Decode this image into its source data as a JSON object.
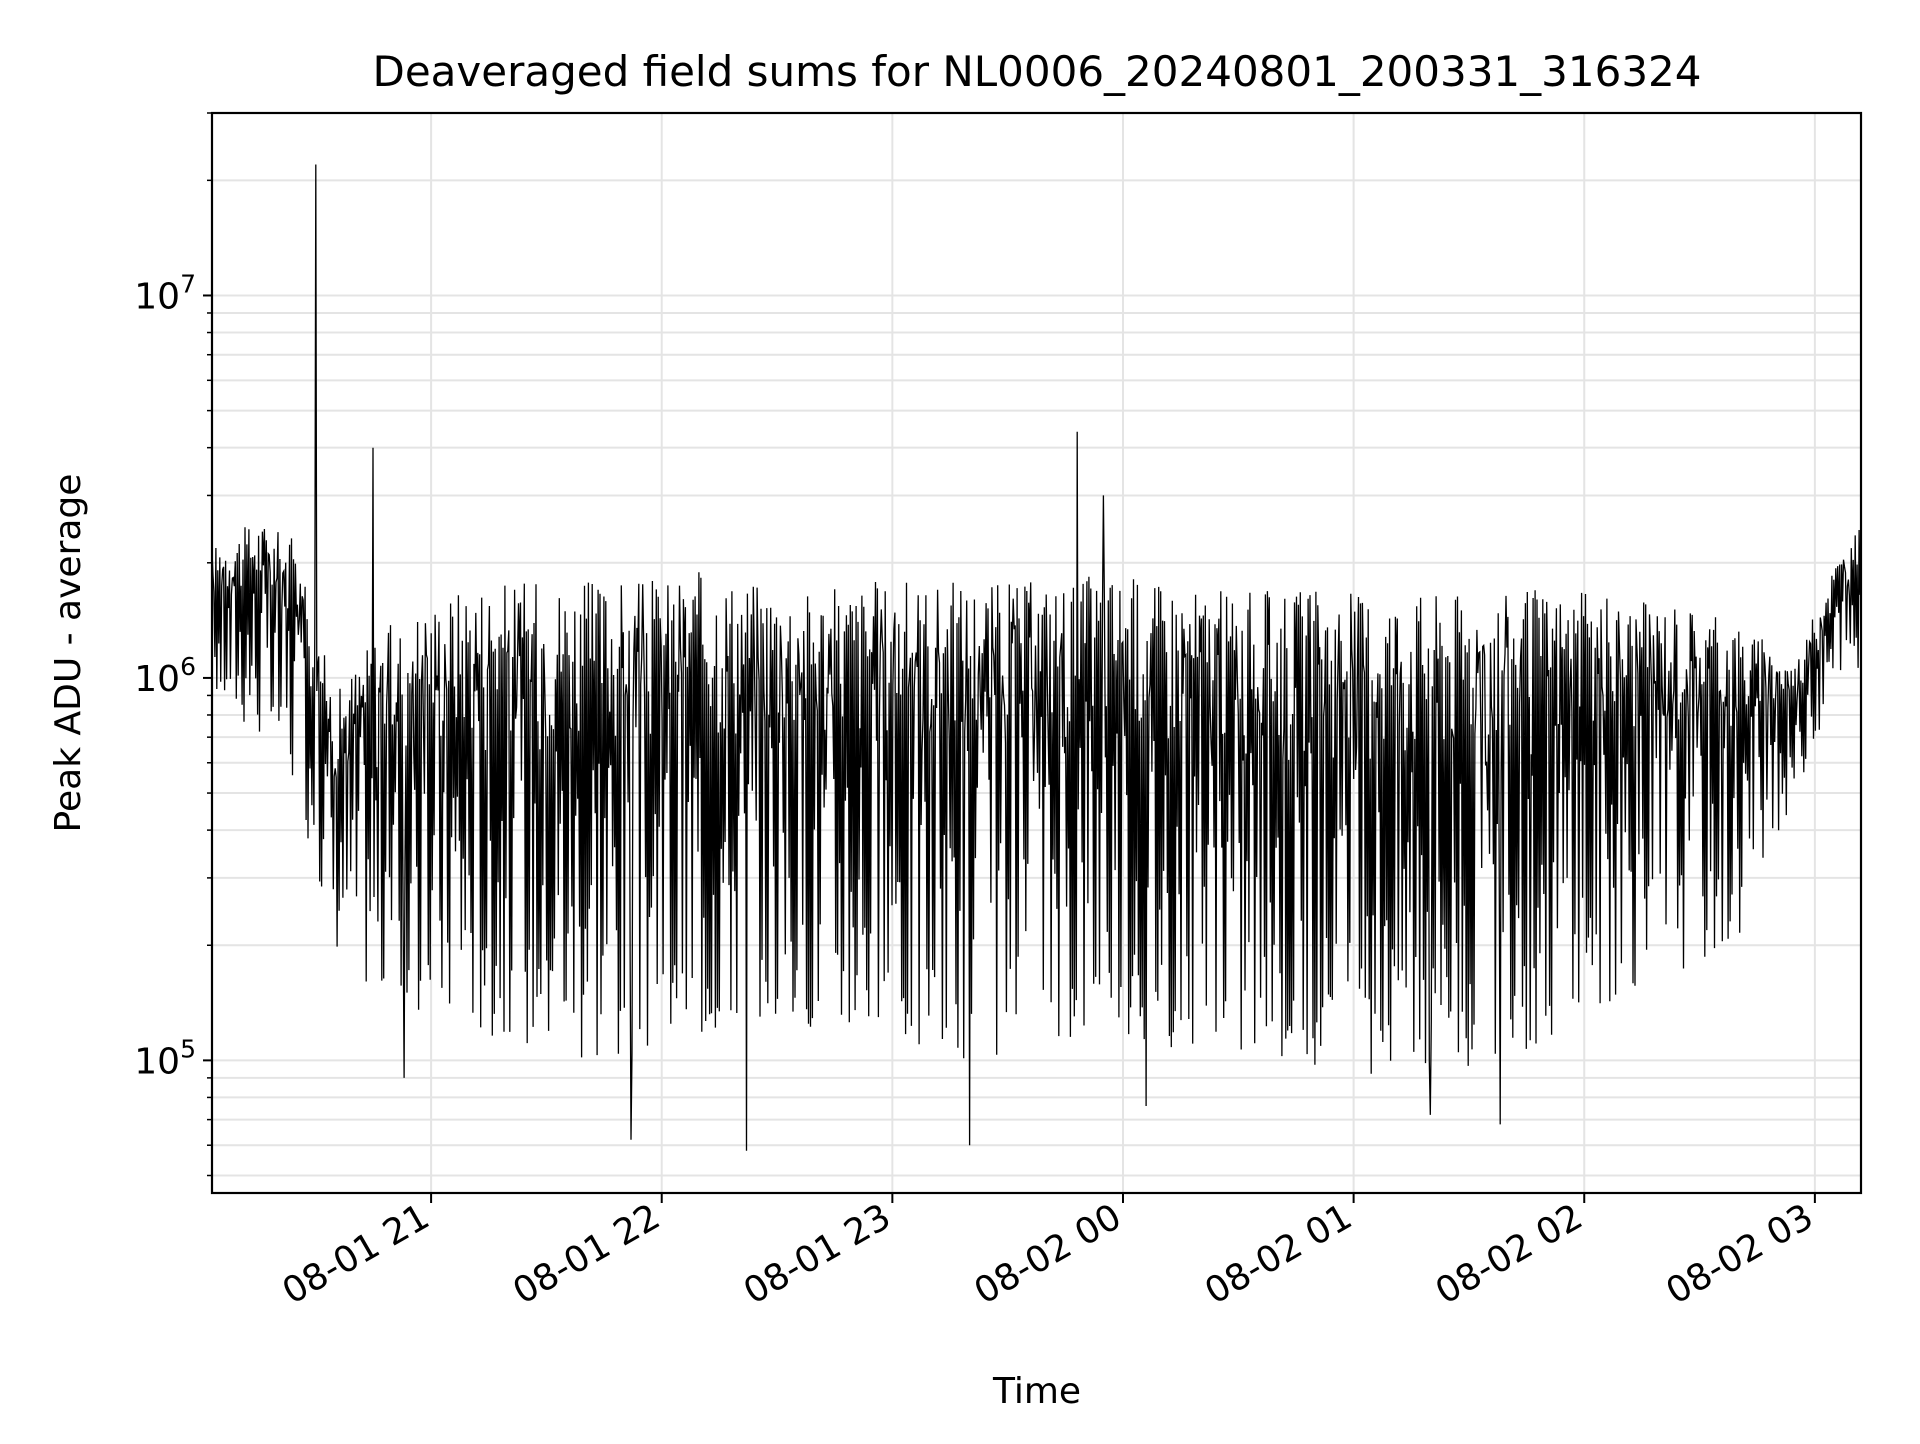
{
  "chart_data": {
    "type": "line",
    "title": "Deaveraged field sums for NL0006_20240801_200331_316324",
    "xlabel": "Time",
    "ylabel": "Peak ADU - average",
    "yscale": "log",
    "ylim": [
      45000,
      30000000
    ],
    "xlim": [
      "2024-08-01 20:03",
      "2024-08-02 03:12"
    ],
    "grid": true,
    "x_ticks": [
      {
        "x": "2024-08-01 21:00",
        "label": "08-01 21"
      },
      {
        "x": "2024-08-01 22:00",
        "label": "08-01 22"
      },
      {
        "x": "2024-08-01 23:00",
        "label": "08-01 23"
      },
      {
        "x": "2024-08-02 00:00",
        "label": "08-02 00"
      },
      {
        "x": "2024-08-02 01:00",
        "label": "08-02 01"
      },
      {
        "x": "2024-08-02 02:00",
        "label": "08-02 02"
      },
      {
        "x": "2024-08-02 03:00",
        "label": "08-02 03"
      }
    ],
    "y_ticks": [
      {
        "value": 100000,
        "base": "10",
        "exp": "5"
      },
      {
        "value": 1000000,
        "base": "10",
        "exp": "6"
      },
      {
        "value": 10000000,
        "base": "10",
        "exp": "7"
      }
    ],
    "series": [
      {
        "color": "#000000",
        "x": [
          "2024-08-01 20:03",
          "2024-08-01 20:15",
          "2024-08-01 20:25",
          "2024-08-01 20:35",
          "2024-08-01 20:45",
          "2024-08-01 20:55",
          "2024-08-01 21:10",
          "2024-08-01 21:25",
          "2024-08-01 21:40",
          "2024-08-01 21:55",
          "2024-08-01 22:10",
          "2024-08-01 22:25",
          "2024-08-01 22:40",
          "2024-08-01 22:55",
          "2024-08-01 23:10",
          "2024-08-01 23:25",
          "2024-08-01 23:40",
          "2024-08-01 23:55",
          "2024-08-02 00:10",
          "2024-08-02 00:25",
          "2024-08-02 00:40",
          "2024-08-02 00:55",
          "2024-08-02 01:10",
          "2024-08-02 01:25",
          "2024-08-02 01:40",
          "2024-08-02 01:55",
          "2024-08-02 02:10",
          "2024-08-02 02:25",
          "2024-08-02 02:40",
          "2024-08-02 02:55",
          "2024-08-02 03:05",
          "2024-08-02 03:12"
        ],
        "envelope_high": [
          2200000,
          2600000,
          2300000,
          900000,
          1300000,
          1500000,
          1800000,
          1800000,
          1800000,
          1800000,
          1900000,
          1800000,
          1700000,
          1800000,
          1800000,
          1800000,
          1800000,
          1900000,
          1800000,
          1700000,
          1700000,
          1700000,
          1700000,
          1700000,
          1700000,
          1700000,
          1600000,
          1600000,
          1400000,
          1100000,
          2000000,
          2500000
        ],
        "envelope_low": [
          900000,
          700000,
          500000,
          200000,
          150000,
          130000,
          120000,
          110000,
          100000,
          100000,
          110000,
          130000,
          120000,
          110000,
          100000,
          100000,
          110000,
          120000,
          110000,
          100000,
          100000,
          95000,
          90000,
          90000,
          100000,
          120000,
          150000,
          170000,
          210000,
          500000,
          900000,
          950000
        ],
        "spikes": [
          {
            "x": "2024-08-01 20:30",
            "y": 22000000
          },
          {
            "x": "2024-08-01 20:45",
            "y": 4000000
          },
          {
            "x": "2024-08-01 23:48",
            "y": 4400000
          },
          {
            "x": "2024-08-01 23:55",
            "y": 3000000
          }
        ],
        "dips": [
          {
            "x": "2024-08-01 20:53",
            "y": 90000
          },
          {
            "x": "2024-08-01 21:52",
            "y": 62000
          },
          {
            "x": "2024-08-01 22:22",
            "y": 58000
          },
          {
            "x": "2024-08-01 23:20",
            "y": 60000
          },
          {
            "x": "2024-08-02 00:06",
            "y": 76000
          },
          {
            "x": "2024-08-02 01:20",
            "y": 72000
          },
          {
            "x": "2024-08-02 01:38",
            "y": 68000
          }
        ]
      }
    ]
  }
}
